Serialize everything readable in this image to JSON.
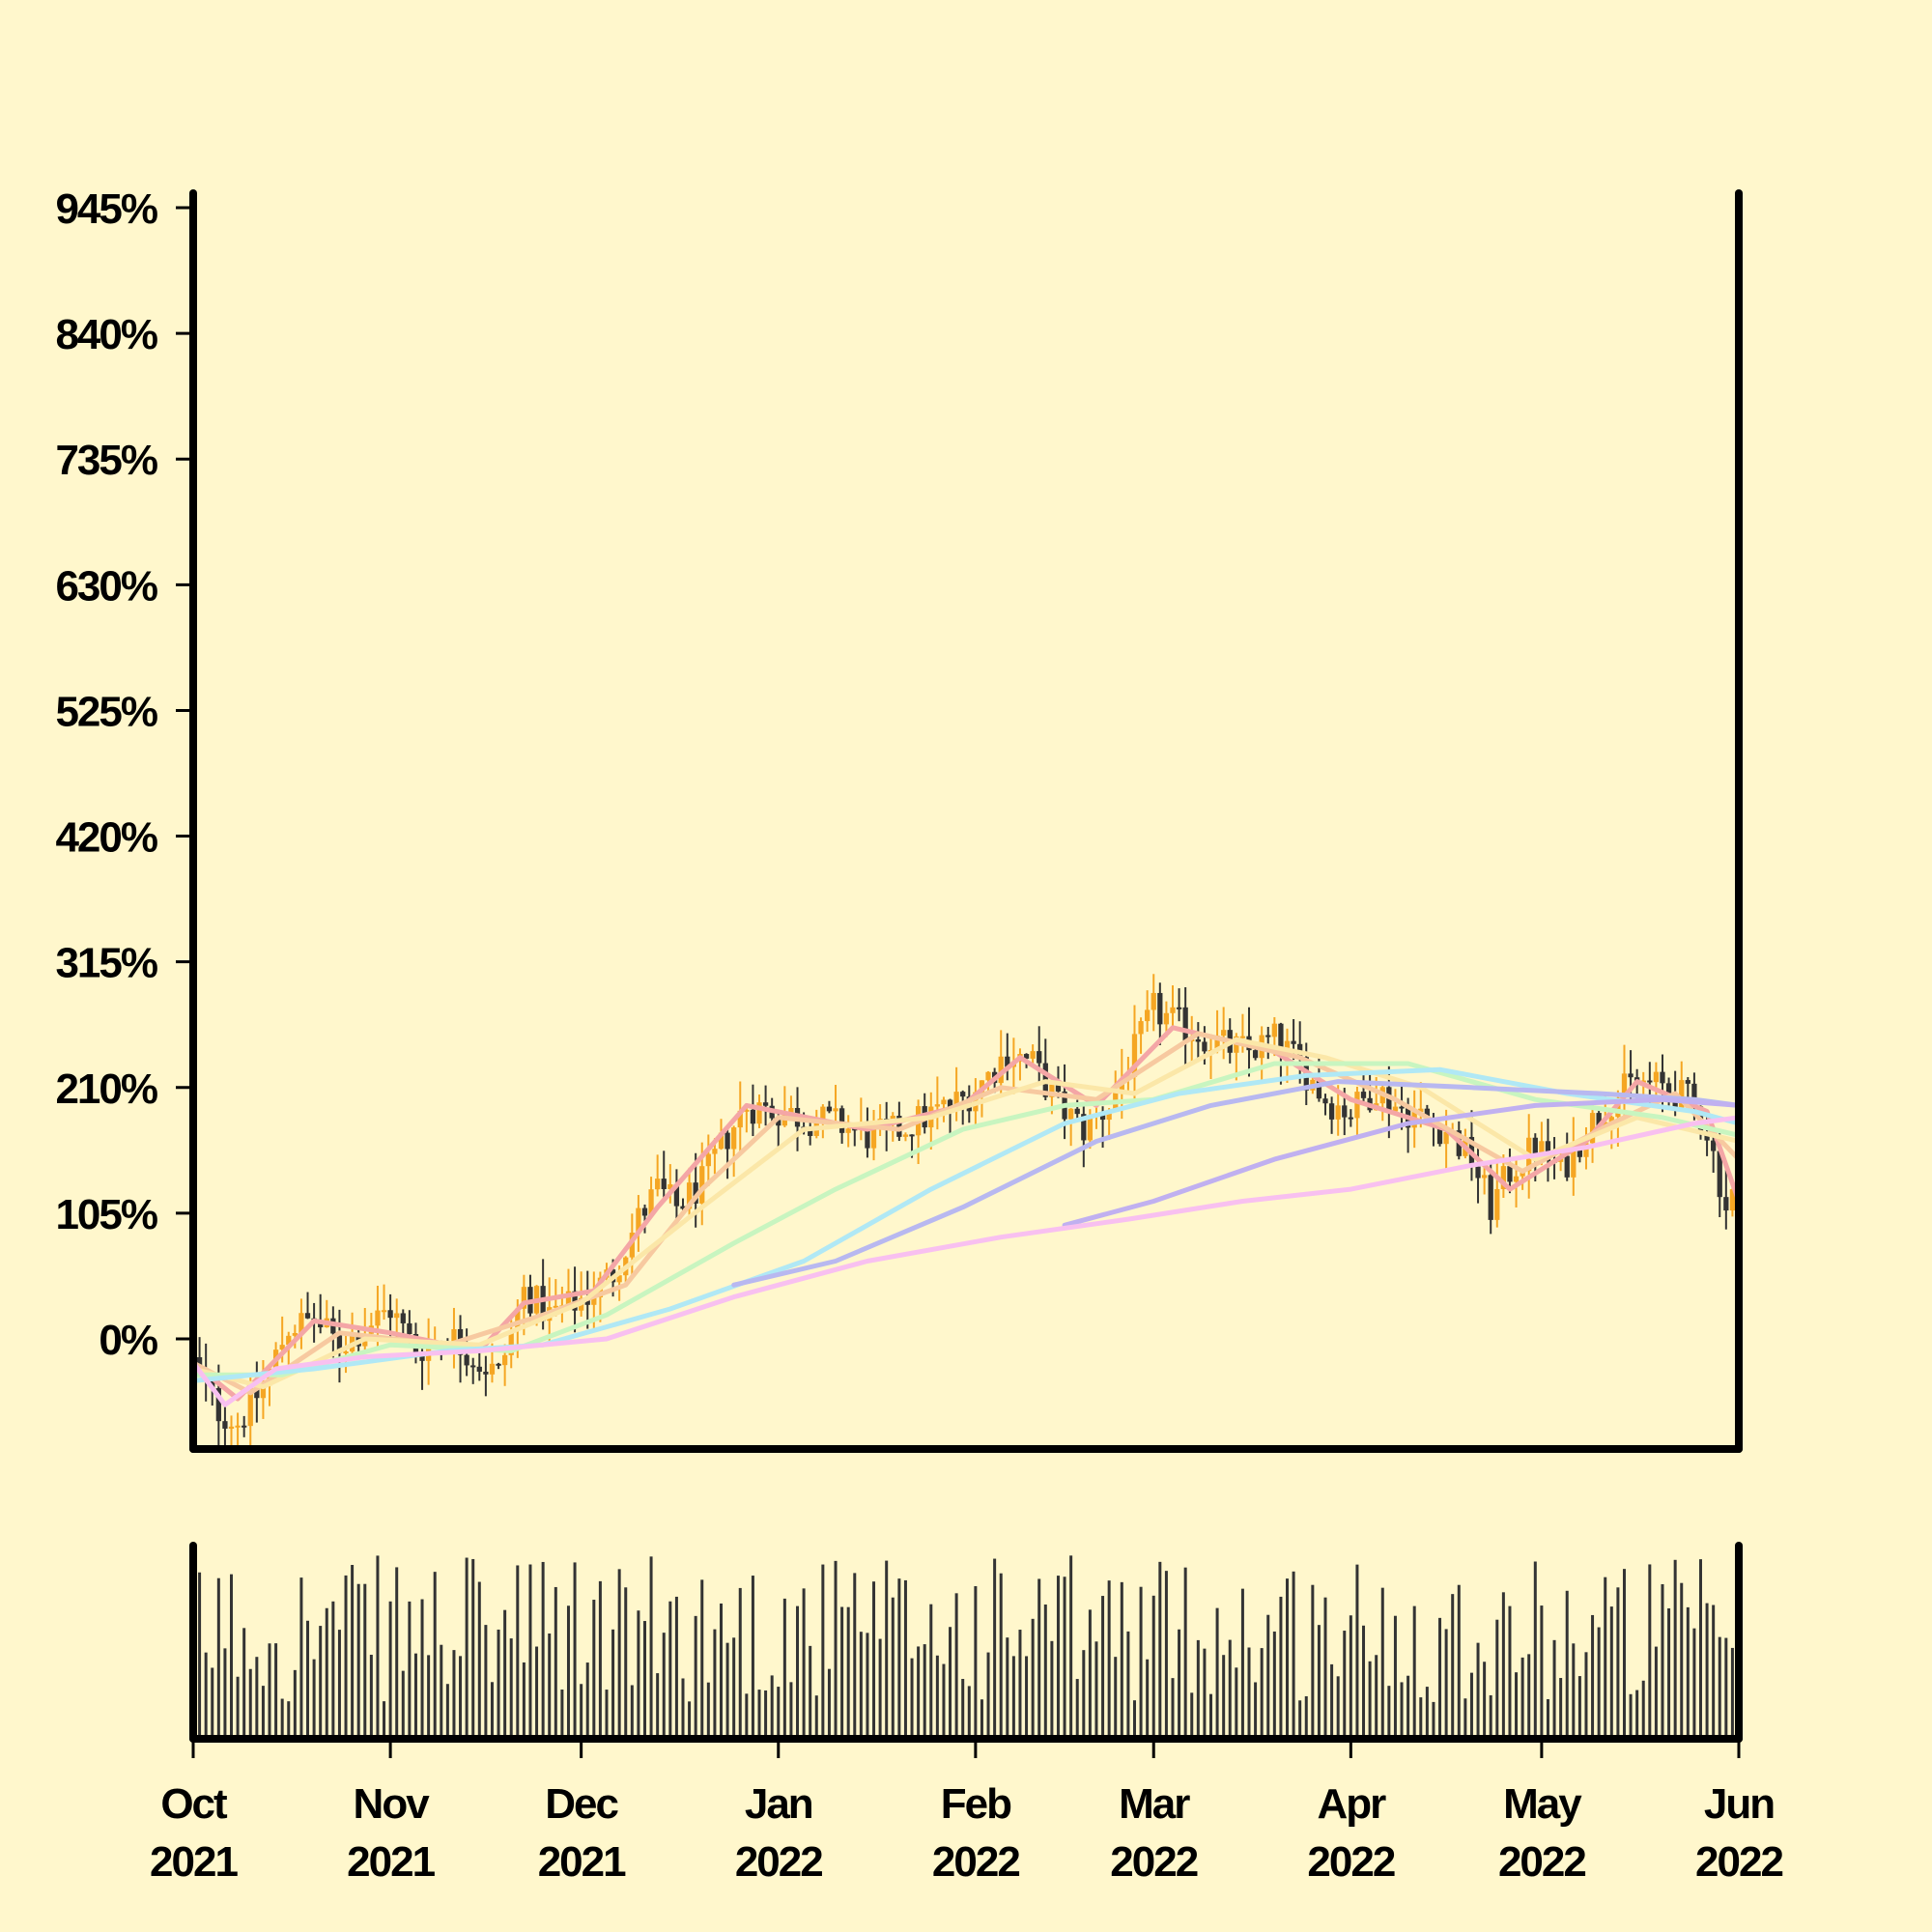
{
  "chart_data": {
    "type": "candlestick",
    "title": "",
    "price_axis": {
      "unit": "%",
      "tick_labels": [
        "945%",
        "840%",
        "735%",
        "630%",
        "525%",
        "420%",
        "315%",
        "210%",
        "105%",
        "0%"
      ],
      "ticks": [
        945,
        840,
        735,
        630,
        525,
        420,
        315,
        210,
        105,
        0
      ],
      "ylim": [
        -92,
        945
      ]
    },
    "time_axis": {
      "tick_labels": [
        [
          "Oct",
          "2021"
        ],
        [
          "Nov",
          "2021"
        ],
        [
          "Dec",
          "2021"
        ],
        [
          "Jan",
          "2022"
        ],
        [
          "Feb",
          "2022"
        ],
        [
          "Mar",
          "2022"
        ],
        [
          "Apr",
          "2022"
        ],
        [
          "May",
          "2022"
        ],
        [
          "Jun",
          "2022"
        ]
      ],
      "ticks": [
        "2021-10-01",
        "2021-11-01",
        "2021-12-01",
        "2022-01-01",
        "2022-02-01",
        "2022-03-01",
        "2022-04-01",
        "2022-05-01",
        "2022-06-01"
      ],
      "xlim": [
        "2021-10-01",
        "2022-06-01"
      ]
    },
    "close_trend": [
      [
        "2021-10-01",
        -20
      ],
      [
        "2021-10-05",
        -60
      ],
      [
        "2021-10-08",
        -70
      ],
      [
        "2021-10-12",
        -40
      ],
      [
        "2021-10-16",
        10
      ],
      [
        "2021-10-20",
        15
      ],
      [
        "2021-10-24",
        -5
      ],
      [
        "2021-10-28",
        10
      ],
      [
        "2021-11-01",
        25
      ],
      [
        "2021-11-05",
        -10
      ],
      [
        "2021-11-10",
        5
      ],
      [
        "2021-11-15",
        -20
      ],
      [
        "2021-11-18",
        -30
      ],
      [
        "2021-11-22",
        40
      ],
      [
        "2021-11-26",
        20
      ],
      [
        "2021-11-30",
        30
      ],
      [
        "2021-12-03",
        40
      ],
      [
        "2021-12-06",
        55
      ],
      [
        "2021-12-10",
        100
      ],
      [
        "2021-12-13",
        125
      ],
      [
        "2021-12-16",
        110
      ],
      [
        "2021-12-20",
        130
      ],
      [
        "2021-12-24",
        170
      ],
      [
        "2021-12-27",
        195
      ],
      [
        "2022-01-01",
        190
      ],
      [
        "2022-01-05",
        185
      ],
      [
        "2022-01-10",
        180
      ],
      [
        "2022-01-15",
        170
      ],
      [
        "2022-01-18",
        170
      ],
      [
        "2022-01-22",
        180
      ],
      [
        "2022-01-26",
        190
      ],
      [
        "2022-01-30",
        200
      ],
      [
        "2022-02-03",
        220
      ],
      [
        "2022-02-06",
        240
      ],
      [
        "2022-02-10",
        230
      ],
      [
        "2022-02-14",
        195
      ],
      [
        "2022-02-18",
        175
      ],
      [
        "2022-02-22",
        195
      ],
      [
        "2022-02-26",
        240
      ],
      [
        "2022-03-01",
        275
      ],
      [
        "2022-03-04",
        265
      ],
      [
        "2022-03-08",
        255
      ],
      [
        "2022-03-12",
        245
      ],
      [
        "2022-03-16",
        240
      ],
      [
        "2022-03-20",
        250
      ],
      [
        "2022-03-24",
        230
      ],
      [
        "2022-03-28",
        200
      ],
      [
        "2022-04-01",
        190
      ],
      [
        "2022-04-05",
        210
      ],
      [
        "2022-04-08",
        195
      ],
      [
        "2022-04-12",
        185
      ],
      [
        "2022-04-16",
        175
      ],
      [
        "2022-04-20",
        150
      ],
      [
        "2022-04-23",
        110
      ],
      [
        "2022-04-26",
        140
      ],
      [
        "2022-04-30",
        160
      ],
      [
        "2022-05-04",
        140
      ],
      [
        "2022-05-08",
        175
      ],
      [
        "2022-05-12",
        200
      ],
      [
        "2022-05-16",
        215
      ],
      [
        "2022-05-20",
        210
      ],
      [
        "2022-05-24",
        200
      ],
      [
        "2022-05-27",
        175
      ],
      [
        "2022-05-30",
        110
      ],
      [
        "2022-06-01",
        130
      ]
    ],
    "moving_averages": [
      {
        "color": "#f4a6a6",
        "values": [
          [
            "2021-10-01",
            -20
          ],
          [
            "2021-10-08",
            -50
          ],
          [
            "2021-10-20",
            15
          ],
          [
            "2021-11-01",
            5
          ],
          [
            "2021-11-15",
            -10
          ],
          [
            "2021-11-22",
            30
          ],
          [
            "2021-12-03",
            40
          ],
          [
            "2021-12-13",
            110
          ],
          [
            "2021-12-27",
            195
          ],
          [
            "2022-01-15",
            175
          ],
          [
            "2022-01-30",
            195
          ],
          [
            "2022-02-08",
            235
          ],
          [
            "2022-02-20",
            195
          ],
          [
            "2022-03-04",
            260
          ],
          [
            "2022-03-20",
            240
          ],
          [
            "2022-04-01",
            200
          ],
          [
            "2022-04-16",
            175
          ],
          [
            "2022-04-26",
            125
          ],
          [
            "2022-05-08",
            165
          ],
          [
            "2022-05-16",
            215
          ],
          [
            "2022-05-27",
            190
          ],
          [
            "2022-06-01",
            115
          ]
        ]
      },
      {
        "color": "#f7c9a0",
        "values": [
          [
            "2021-10-01",
            -20
          ],
          [
            "2021-10-10",
            -45
          ],
          [
            "2021-10-24",
            5
          ],
          [
            "2021-11-10",
            -5
          ],
          [
            "2021-11-25",
            20
          ],
          [
            "2021-12-08",
            45
          ],
          [
            "2021-12-20",
            125
          ],
          [
            "2022-01-01",
            185
          ],
          [
            "2022-01-20",
            175
          ],
          [
            "2022-02-05",
            210
          ],
          [
            "2022-02-20",
            200
          ],
          [
            "2022-03-08",
            255
          ],
          [
            "2022-03-24",
            235
          ],
          [
            "2022-04-08",
            200
          ],
          [
            "2022-04-28",
            140
          ],
          [
            "2022-05-12",
            180
          ],
          [
            "2022-05-22",
            205
          ],
          [
            "2022-06-01",
            150
          ]
        ]
      },
      {
        "color": "#fbe7a8",
        "values": [
          [
            "2021-10-01",
            -25
          ],
          [
            "2021-10-12",
            -40
          ],
          [
            "2021-10-28",
            0
          ],
          [
            "2021-11-15",
            -5
          ],
          [
            "2021-12-01",
            30
          ],
          [
            "2021-12-20",
            110
          ],
          [
            "2022-01-05",
            175
          ],
          [
            "2022-01-25",
            185
          ],
          [
            "2022-02-12",
            215
          ],
          [
            "2022-02-26",
            205
          ],
          [
            "2022-03-14",
            250
          ],
          [
            "2022-03-28",
            235
          ],
          [
            "2022-04-12",
            210
          ],
          [
            "2022-04-30",
            150
          ],
          [
            "2022-05-16",
            185
          ],
          [
            "2022-06-01",
            165
          ]
        ]
      },
      {
        "color": "#c8f5c0",
        "values": [
          [
            "2021-10-01",
            -30
          ],
          [
            "2021-10-15",
            -30
          ],
          [
            "2021-11-01",
            -5
          ],
          [
            "2021-11-20",
            -10
          ],
          [
            "2021-12-05",
            20
          ],
          [
            "2021-12-25",
            80
          ],
          [
            "2022-01-10",
            125
          ],
          [
            "2022-01-30",
            175
          ],
          [
            "2022-02-15",
            195
          ],
          [
            "2022-03-01",
            200
          ],
          [
            "2022-03-20",
            230
          ],
          [
            "2022-04-10",
            230
          ],
          [
            "2022-04-30",
            200
          ],
          [
            "2022-05-20",
            185
          ],
          [
            "2022-06-01",
            170
          ]
        ]
      },
      {
        "color": "#b0e8f5",
        "values": [
          [
            "2021-10-01",
            -35
          ],
          [
            "2021-10-20",
            -25
          ],
          [
            "2021-11-10",
            -10
          ],
          [
            "2021-11-25",
            -5
          ],
          [
            "2021-12-15",
            25
          ],
          [
            "2022-01-05",
            65
          ],
          [
            "2022-01-25",
            125
          ],
          [
            "2022-02-15",
            180
          ],
          [
            "2022-03-05",
            205
          ],
          [
            "2022-03-25",
            220
          ],
          [
            "2022-04-15",
            225
          ],
          [
            "2022-05-05",
            205
          ],
          [
            "2022-05-25",
            190
          ],
          [
            "2022-06-01",
            180
          ]
        ]
      },
      {
        "color": "#b8b8f0",
        "values": [
          [
            "2021-12-25",
            45
          ],
          [
            "2022-01-10",
            65
          ],
          [
            "2022-01-30",
            110
          ],
          [
            "2022-02-20",
            165
          ],
          [
            "2022-03-10",
            195
          ],
          [
            "2022-03-30",
            215
          ],
          [
            "2022-04-20",
            210
          ],
          [
            "2022-05-10",
            205
          ],
          [
            "2022-05-25",
            200
          ],
          [
            "2022-06-01",
            195
          ]
        ]
      },
      {
        "color": "#c0b0f0",
        "values": [
          [
            "2022-02-15",
            95
          ],
          [
            "2022-03-01",
            115
          ],
          [
            "2022-03-20",
            150
          ],
          [
            "2022-04-10",
            180
          ],
          [
            "2022-04-30",
            195
          ],
          [
            "2022-05-20",
            200
          ],
          [
            "2022-06-01",
            195
          ]
        ]
      },
      {
        "color": "#f8c0f0",
        "values": [
          [
            "2021-10-01",
            -20
          ],
          [
            "2021-10-06",
            -55
          ],
          [
            "2021-10-14",
            -25
          ],
          [
            "2021-10-28",
            -15
          ],
          [
            "2021-11-15",
            -10
          ],
          [
            "2021-12-05",
            0
          ],
          [
            "2021-12-25",
            35
          ],
          [
            "2022-01-15",
            65
          ],
          [
            "2022-02-05",
            85
          ],
          [
            "2022-02-25",
            100
          ],
          [
            "2022-03-15",
            115
          ],
          [
            "2022-04-01",
            125
          ],
          [
            "2022-04-20",
            145
          ],
          [
            "2022-05-08",
            160
          ],
          [
            "2022-05-25",
            180
          ],
          [
            "2022-06-01",
            185
          ]
        ]
      }
    ],
    "volume_panel": {
      "shown": true,
      "bar_color": "#333333"
    },
    "colors": {
      "background": "#fff7cc",
      "up": "#f5a623",
      "down": "#333333",
      "axis": "#000000"
    },
    "grid": false,
    "legend": "none"
  }
}
